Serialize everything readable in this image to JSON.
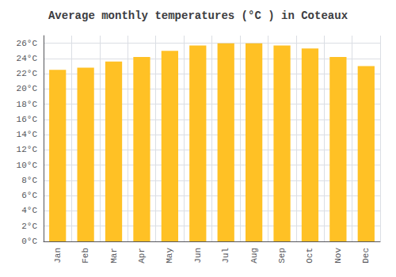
{
  "chart_data": {
    "type": "bar",
    "title": "Average monthly temperatures (°C ) in Coteaux",
    "categories": [
      "Jan",
      "Feb",
      "Mar",
      "Apr",
      "May",
      "Jun",
      "Jul",
      "Aug",
      "Sep",
      "Oct",
      "Nov",
      "Dec"
    ],
    "values": [
      22.5,
      22.8,
      23.6,
      24.2,
      25.0,
      25.7,
      26.0,
      26.0,
      25.7,
      25.3,
      24.2,
      23.0
    ],
    "color": "#FFC125",
    "ylim": [
      0,
      27
    ],
    "yticks": [
      {
        "value": 0,
        "label": "0°C"
      },
      {
        "value": 2,
        "label": "2°C"
      },
      {
        "value": 4,
        "label": "4°C"
      },
      {
        "value": 6,
        "label": "6°C"
      },
      {
        "value": 8,
        "label": "8°C"
      },
      {
        "value": 10,
        "label": "10°C"
      },
      {
        "value": 12,
        "label": "12°C"
      },
      {
        "value": 14,
        "label": "14°C"
      },
      {
        "value": 16,
        "label": "16°C"
      },
      {
        "value": 18,
        "label": "18°C"
      },
      {
        "value": 20,
        "label": "20°C"
      },
      {
        "value": 22,
        "label": "22°C"
      },
      {
        "value": 24,
        "label": "24°C"
      },
      {
        "value": 26,
        "label": "26°C"
      }
    ],
    "grid": true
  }
}
